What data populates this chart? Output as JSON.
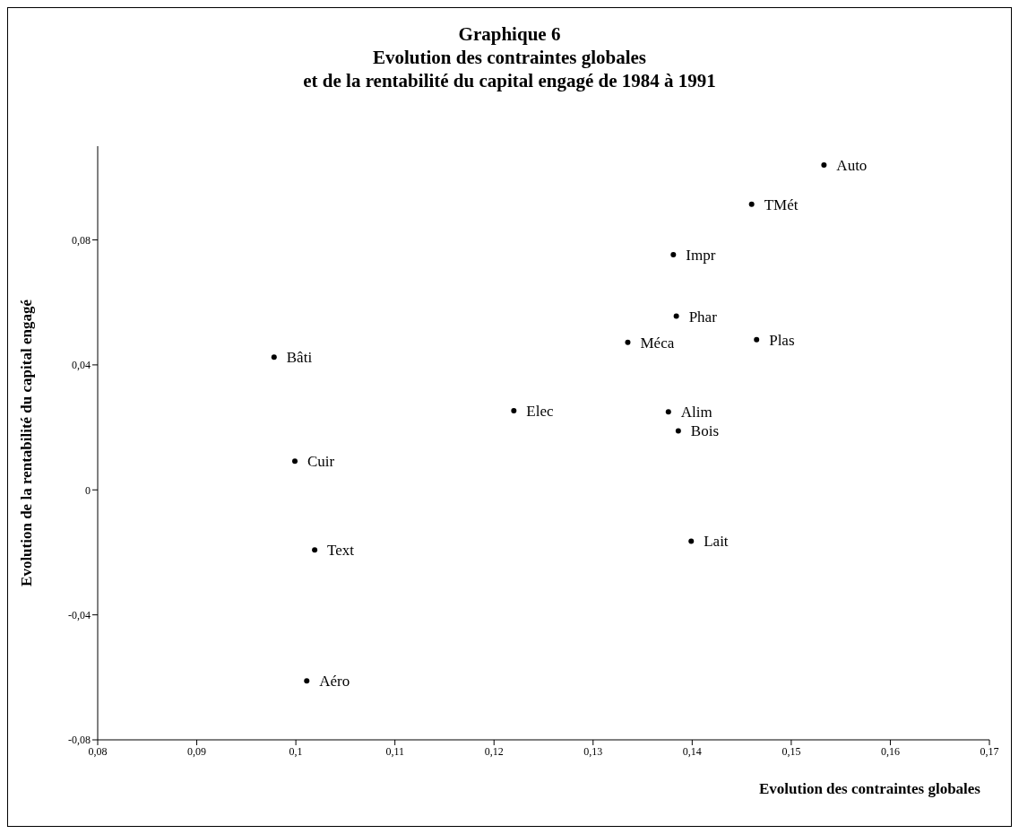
{
  "chart_data": {
    "type": "scatter",
    "title": "Graphique 6\nEvolution des contraintes globales\net de la rentabilité du capital engagé de 1984 à 1991",
    "xlabel": "Evolution des contraintes globales",
    "ylabel": "Evolution de la rentabilité du capital engagé",
    "x": [
      0.1533,
      0.146,
      0.1381,
      0.1384,
      0.1335,
      0.1465,
      0.0978,
      0.122,
      0.1376,
      0.1386,
      0.0999,
      0.1019,
      0.1399,
      0.1011
    ],
    "series": [
      {
        "color": "#000000",
        "values": [
          0.104,
          0.0914,
          0.0753,
          0.0556,
          0.0472,
          0.0481,
          0.0425,
          0.0253,
          0.025,
          0.0189,
          0.0092,
          -0.0192,
          -0.0164,
          -0.0611
        ]
      }
    ],
    "annotations": [
      {
        "text": "Auto",
        "x": 0.1533,
        "y": 0.104
      },
      {
        "text": "TMét",
        "x": 0.146,
        "y": 0.0914
      },
      {
        "text": "Impr",
        "x": 0.1381,
        "y": 0.0753
      },
      {
        "text": "Phar",
        "x": 0.1384,
        "y": 0.0556
      },
      {
        "text": "Méca",
        "x": 0.1335,
        "y": 0.0472
      },
      {
        "text": "Plas",
        "x": 0.1465,
        "y": 0.0481
      },
      {
        "text": "Bâti",
        "x": 0.0978,
        "y": 0.0425
      },
      {
        "text": "Elec",
        "x": 0.122,
        "y": 0.0253
      },
      {
        "text": "Alim",
        "x": 0.1376,
        "y": 0.025
      },
      {
        "text": "Bois",
        "x": 0.1386,
        "y": 0.0189
      },
      {
        "text": "Cuir",
        "x": 0.0999,
        "y": 0.0092
      },
      {
        "text": "Text",
        "x": 0.1019,
        "y": -0.0192
      },
      {
        "text": "Lait",
        "x": 0.1399,
        "y": -0.0164
      },
      {
        "text": "Aéro",
        "x": 0.1011,
        "y": -0.0611
      }
    ],
    "xlim": [
      0.08,
      0.17
    ],
    "ylim": [
      -0.08,
      0.11
    ],
    "xticks": [
      {
        "value": 0.08,
        "label": "0,08"
      },
      {
        "value": 0.09,
        "label": "0,09"
      },
      {
        "value": 0.1,
        "label": "0,1"
      },
      {
        "value": 0.11,
        "label": "0,11"
      },
      {
        "value": 0.12,
        "label": "0,12"
      },
      {
        "value": 0.13,
        "label": "0,13"
      },
      {
        "value": 0.14,
        "label": "0,14"
      },
      {
        "value": 0.15,
        "label": "0,15"
      },
      {
        "value": 0.16,
        "label": "0,16"
      },
      {
        "value": 0.17,
        "label": "0,17"
      }
    ],
    "yticks": [
      {
        "value": -0.08,
        "label": "-0,08"
      },
      {
        "value": -0.04,
        "label": "-0,04"
      },
      0,
      {
        "value": 0.04,
        "label": "0,04"
      },
      {
        "value": 0.08,
        "label": "0,08"
      }
    ],
    "grid": false,
    "legend": false,
    "marker": "circle"
  }
}
